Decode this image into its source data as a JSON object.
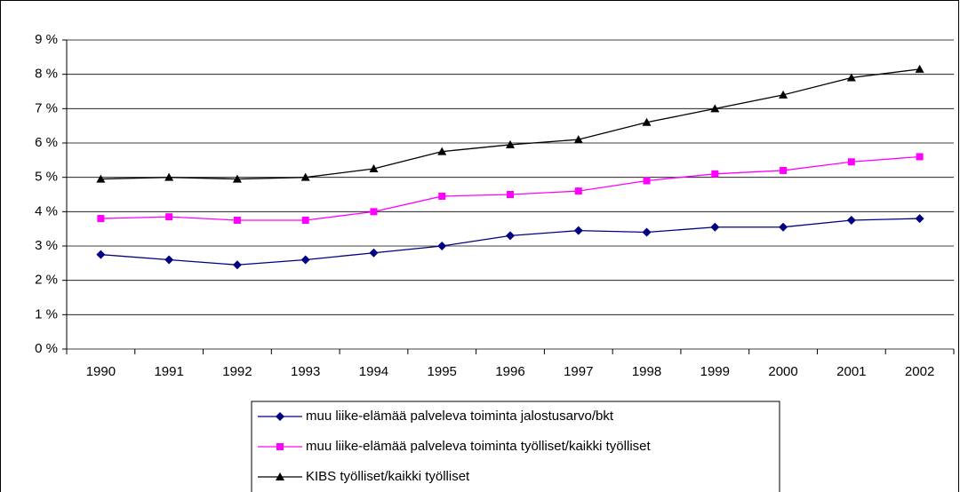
{
  "chart_data": {
    "type": "line",
    "categories": [
      "1990",
      "1991",
      "1992",
      "1993",
      "1994",
      "1995",
      "1996",
      "1997",
      "1998",
      "1999",
      "2000",
      "2001",
      "2002"
    ],
    "series": [
      {
        "name": "muu liike-elämää palveleva toiminta jalostusarvo/bkt",
        "color": "#000080",
        "marker": "diamond",
        "values": [
          2.75,
          2.6,
          2.45,
          2.6,
          2.8,
          3.0,
          3.3,
          3.45,
          3.4,
          3.55,
          3.55,
          3.75,
          3.8
        ]
      },
      {
        "name": "muu liike-elämää palveleva toiminta työlliset/kaikki työlliset",
        "color": "#ff00ff",
        "marker": "square",
        "values": [
          3.8,
          3.85,
          3.75,
          3.75,
          4.0,
          4.45,
          4.5,
          4.6,
          4.9,
          5.1,
          5.2,
          5.45,
          5.6
        ]
      },
      {
        "name": "KIBS työlliset/kaikki työlliset",
        "color": "#000000",
        "marker": "triangle",
        "values": [
          4.95,
          5.0,
          4.95,
          5.0,
          5.25,
          5.75,
          5.95,
          6.1,
          6.6,
          7.0,
          7.4,
          7.9,
          8.15
        ]
      }
    ],
    "ylim": [
      0,
      9
    ],
    "yticks": [
      {
        "value": 0,
        "label": "0 %"
      },
      {
        "value": 1,
        "label": "1 %"
      },
      {
        "value": 2,
        "label": "2 %"
      },
      {
        "value": 3,
        "label": "3 %"
      },
      {
        "value": 4,
        "label": "4 %"
      },
      {
        "value": 5,
        "label": "5 %"
      },
      {
        "value": 6,
        "label": "6 %"
      },
      {
        "value": 7,
        "label": "7 %"
      },
      {
        "value": 8,
        "label": "8 %"
      },
      {
        "value": 9,
        "label": "9 %"
      }
    ],
    "grid": true,
    "legend": "bottom"
  }
}
